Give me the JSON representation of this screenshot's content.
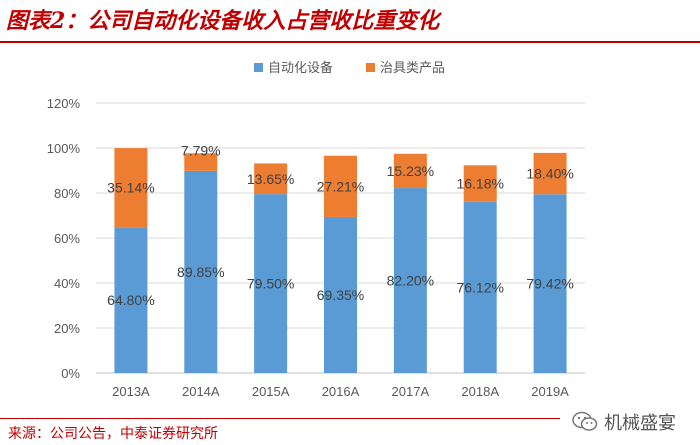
{
  "header": {
    "title": "图表2：公司自动化设备收入占营收比重变化"
  },
  "footer": {
    "source": "来源：公司公告，中泰证券研究所"
  },
  "watermark": {
    "text": "机械盛宴",
    "icon": "wechat-icon"
  },
  "colors": {
    "title": "#c00000",
    "series1": "#5b9bd5",
    "series2": "#ed7d31",
    "grid": "#d9d9d9",
    "axis_text": "#595959"
  },
  "chart_data": {
    "type": "bar",
    "stacked": true,
    "categories": [
      "2013A",
      "2014A",
      "2015A",
      "2016A",
      "2017A",
      "2018A",
      "2019A"
    ],
    "series": [
      {
        "name": "自动化设备",
        "values": [
          64.8,
          89.85,
          79.5,
          69.35,
          82.2,
          76.12,
          79.42
        ],
        "labels": [
          "64.80%",
          "89.85%",
          "79.50%",
          "69.35%",
          "82.20%",
          "76.12%",
          "79.42%"
        ]
      },
      {
        "name": "治具类产品",
        "values": [
          35.14,
          7.79,
          13.65,
          27.21,
          15.23,
          16.18,
          18.4
        ],
        "labels": [
          "35.14%",
          "7.79%",
          "13.65%",
          "27.21%",
          "15.23%",
          "16.18%",
          "18.40%"
        ]
      }
    ],
    "ylim": [
      0,
      120
    ],
    "yticks": [
      0,
      20,
      40,
      60,
      80,
      100,
      120
    ],
    "ytick_labels": [
      "0%",
      "20%",
      "40%",
      "60%",
      "80%",
      "100%",
      "120%"
    ],
    "legend_position": "top",
    "grid": true,
    "xlabel": "",
    "ylabel": ""
  }
}
